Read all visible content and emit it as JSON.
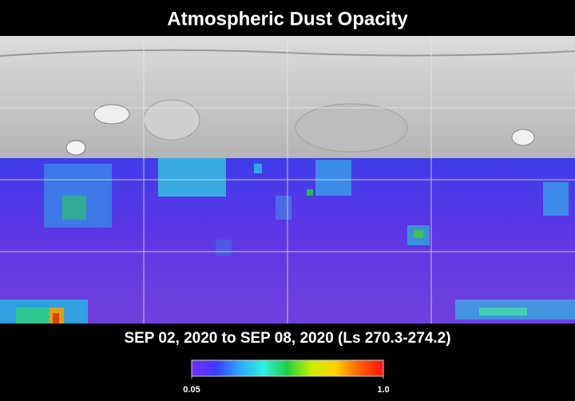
{
  "header": {
    "title": "Atmospheric Dust Opacity",
    "subtitle": "SEP 02, 2020 to SEP 08, 2020 (Ls 270.3-274.2)"
  },
  "colorbar": {
    "ticks": [
      0.05,
      {
        "value": 1,
        "label": "1.0"
      }
    ],
    "colors": [
      "#7a2cff",
      "#3a3cff",
      "#2aa8ff",
      "#30f0e0",
      "#20d040",
      "#c8f000",
      "#ffd000",
      "#ff6000",
      "#ff1010"
    ]
  }
}
